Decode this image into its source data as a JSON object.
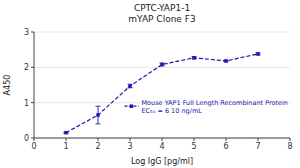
{
  "chart_data": {
    "type": "line",
    "title": "CPTC-YAP1-1",
    "subtitle": "mYAP Clone F3",
    "x_label": "Log IgG [pg/ml]",
    "y_label": "A450",
    "x": [
      1.0,
      2.0,
      3.0,
      4.0,
      5.0,
      6.0,
      7.0
    ],
    "series": [
      {
        "name": "Mouse YAP1 Full Length Recombinant Protein\nEC₅₀ = 6 10 ng/mL",
        "color": "#1a1aaa",
        "marker": "square",
        "line_style": "dashed",
        "values": [
          0.15,
          0.65,
          1.47,
          2.08,
          2.27,
          2.18,
          2.38
        ],
        "errors": [
          0.02,
          0.25,
          0.05,
          0.04,
          0.03,
          0.02,
          0.03
        ]
      }
    ],
    "xlim": [
      0,
      8
    ],
    "ylim": [
      0,
      3
    ],
    "xticks": [
      0,
      1,
      2,
      3,
      4,
      5,
      6,
      7,
      8
    ],
    "yticks": [
      0,
      1,
      2,
      3
    ],
    "legend": "right"
  }
}
